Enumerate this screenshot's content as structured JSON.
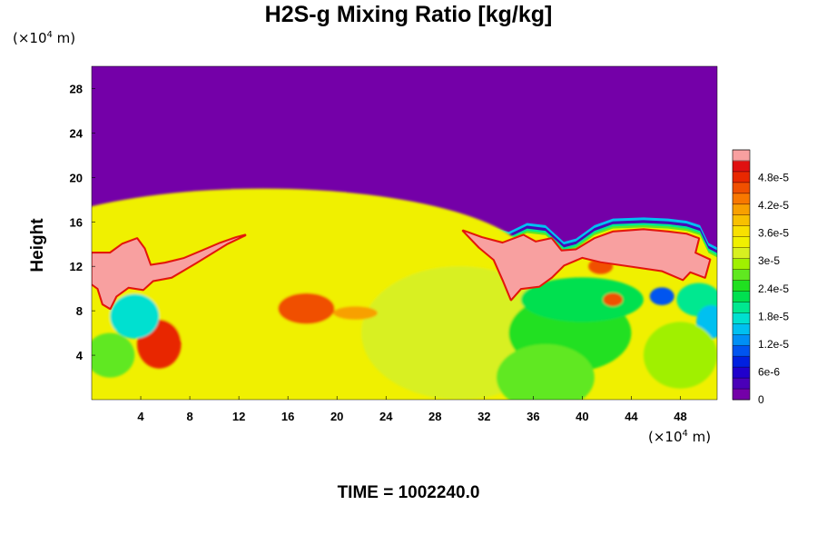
{
  "chart_data": {
    "type": "heatmap",
    "title": "H2S-g Mixing Ratio [kg/kg]",
    "ylabel": "Height",
    "x_unit": {
      "base": "(×10",
      "exp": "4",
      "suffix": " m)"
    },
    "y_unit": {
      "base": "(×10",
      "exp": "4",
      "suffix": " m)"
    },
    "xlim": [
      0,
      51
    ],
    "ylim": [
      0,
      30
    ],
    "x_ticks": [
      4,
      8,
      12,
      16,
      20,
      24,
      28,
      32,
      36,
      40,
      44,
      48
    ],
    "y_ticks": [
      4,
      8,
      12,
      16,
      20,
      24,
      28
    ],
    "colorbar": {
      "range": [
        0,
        5.4e-05
      ],
      "labels": [
        {
          "value": 0,
          "text": "0"
        },
        {
          "value": 6e-06,
          "text": "6e-6"
        },
        {
          "value": 1.2e-05,
          "text": "1.2e-5"
        },
        {
          "value": 1.8e-05,
          "text": "1.8e-5"
        },
        {
          "value": 2.4e-05,
          "text": "2.4e-5"
        },
        {
          "value": 3e-05,
          "text": "3e-5"
        },
        {
          "value": 3.6e-05,
          "text": "3.6e-5"
        },
        {
          "value": 4.2e-05,
          "text": "4.2e-5"
        },
        {
          "value": 4.8e-05,
          "text": "4.8e-5"
        }
      ],
      "colors": [
        "#7400a8",
        "#4a00b8",
        "#2000cc",
        "#0020e0",
        "#0055f0",
        "#0090f5",
        "#00c0f0",
        "#00e0d0",
        "#00e890",
        "#00e050",
        "#20e020",
        "#60e820",
        "#a0f000",
        "#d8f020",
        "#f0f000",
        "#f8e000",
        "#f8c000",
        "#f8a000",
        "#f87800",
        "#f05000",
        "#e82800",
        "#e01010",
        "#f8a0a0"
      ]
    },
    "background_value": 0,
    "fields": [
      {
        "kind": "base",
        "value": 3.3e-05
      },
      {
        "kind": "blob",
        "x": 14,
        "y": 12,
        "rx": 22,
        "ry": 7,
        "value": 3.4e-05
      },
      {
        "kind": "blob",
        "x": 30,
        "y": 6,
        "rx": 8,
        "ry": 6,
        "value": 3.2e-05
      },
      {
        "kind": "blob",
        "x": 17.5,
        "y": 8.2,
        "rx": 2.3,
        "ry": 1.4,
        "value": 4.6e-05
      },
      {
        "kind": "blob",
        "x": 21.5,
        "y": 7.8,
        "rx": 1.8,
        "ry": 0.6,
        "value": 4e-05
      },
      {
        "kind": "blob",
        "x": 5.5,
        "y": 5.0,
        "rx": 1.8,
        "ry": 2.2,
        "value": 4.9e-05
      },
      {
        "kind": "blob",
        "x": 3.5,
        "y": 7.5,
        "rx": 2.0,
        "ry": 2.0,
        "value": 1.8e-05
      },
      {
        "kind": "blob",
        "x": 1.5,
        "y": 4.0,
        "rx": 2.0,
        "ry": 2.0,
        "value": 2.6e-05
      },
      {
        "kind": "blob",
        "x": 39,
        "y": 6,
        "rx": 5,
        "ry": 3.5,
        "value": 2.5e-05
      },
      {
        "kind": "blob",
        "x": 40,
        "y": 9,
        "rx": 5,
        "ry": 2,
        "value": 2.2e-05
      },
      {
        "kind": "blob",
        "x": 46.5,
        "y": 9.3,
        "rx": 1.0,
        "ry": 0.8,
        "value": 1e-05
      },
      {
        "kind": "blob",
        "x": 42.5,
        "y": 9.0,
        "rx": 0.8,
        "ry": 0.6,
        "value": 4.6e-05
      },
      {
        "kind": "blob",
        "x": 41.5,
        "y": 12.0,
        "rx": 1.0,
        "ry": 0.7,
        "value": 4.6e-05
      },
      {
        "kind": "blob",
        "x": 49.5,
        "y": 9.0,
        "rx": 1.8,
        "ry": 1.5,
        "value": 2e-05
      },
      {
        "kind": "blob",
        "x": 50.5,
        "y": 7.0,
        "rx": 1.2,
        "ry": 1.5,
        "value": 1.6e-05
      },
      {
        "kind": "blob",
        "x": 37,
        "y": 2,
        "rx": 4,
        "ry": 3,
        "value": 2.8e-05
      },
      {
        "kind": "blob",
        "x": 48,
        "y": 4,
        "rx": 3,
        "ry": 3,
        "value": 3e-05
      }
    ],
    "plume_top": [
      [
        0,
        13.3
      ],
      [
        1.5,
        13.3
      ],
      [
        2.5,
        14.2
      ],
      [
        3.8,
        14.8
      ],
      [
        4.5,
        13.6
      ],
      [
        5,
        12.3
      ],
      [
        7.2,
        12.8
      ],
      [
        9,
        13.6
      ],
      [
        10.5,
        14.2
      ],
      [
        11.5,
        14.7
      ],
      [
        12.3,
        15.2
      ],
      [
        13.5,
        15.4
      ],
      [
        20,
        15.4
      ],
      [
        26,
        15.4
      ],
      [
        30,
        15.4
      ],
      [
        31,
        15.2
      ],
      [
        32.5,
        14.7
      ],
      [
        34,
        14.2
      ],
      [
        35.5,
        15.0
      ],
      [
        37,
        14.8
      ],
      [
        38.5,
        13.3
      ],
      [
        39.5,
        13.6
      ],
      [
        41,
        14.8
      ],
      [
        42.5,
        15.4
      ],
      [
        45,
        15.5
      ],
      [
        47,
        15.4
      ],
      [
        48.5,
        15.2
      ],
      [
        49.6,
        14.8
      ],
      [
        50.3,
        13.2
      ],
      [
        51,
        12.8
      ]
    ],
    "high_regions": [
      [
        [
          0,
          13.2
        ],
        [
          1.5,
          13.2
        ],
        [
          2.5,
          14.0
        ],
        [
          3.7,
          14.5
        ],
        [
          4.3,
          13.6
        ],
        [
          4.8,
          12.1
        ],
        [
          6,
          12.3
        ],
        [
          7.5,
          12.7
        ],
        [
          9,
          13.4
        ],
        [
          10.5,
          14.1
        ],
        [
          11.8,
          14.6
        ],
        [
          12.5,
          14.8
        ],
        [
          11,
          14.0
        ],
        [
          8.5,
          12.3
        ],
        [
          6.5,
          11.0
        ],
        [
          5,
          10.7
        ],
        [
          4.2,
          9.9
        ],
        [
          3,
          10.1
        ],
        [
          2,
          9.3
        ],
        [
          1.5,
          8.2
        ],
        [
          0.9,
          8.6
        ],
        [
          0.5,
          10.0
        ],
        [
          0,
          10.4
        ]
      ],
      [
        [
          30.3,
          15.2
        ],
        [
          31.8,
          14.6
        ],
        [
          33.5,
          14.1
        ],
        [
          35.2,
          14.8
        ],
        [
          36.2,
          14.2
        ],
        [
          37.5,
          14.5
        ],
        [
          38.3,
          13.4
        ],
        [
          39.5,
          13.5
        ],
        [
          41,
          14.5
        ],
        [
          42.5,
          15.1
        ],
        [
          45,
          15.3
        ],
        [
          47,
          15.1
        ],
        [
          48.5,
          14.9
        ],
        [
          49.5,
          14.5
        ],
        [
          49.2,
          13.2
        ],
        [
          50.4,
          12.6
        ],
        [
          50.0,
          11.0
        ],
        [
          48.8,
          11.5
        ],
        [
          48.2,
          10.8
        ],
        [
          46.5,
          11.6
        ],
        [
          44,
          12.0
        ],
        [
          41.5,
          12.4
        ],
        [
          40,
          12.8
        ],
        [
          38.5,
          12.1
        ],
        [
          37.5,
          11.0
        ],
        [
          36.5,
          10.2
        ],
        [
          35,
          10.0
        ],
        [
          34.2,
          9.0
        ],
        [
          33.6,
          10.6
        ],
        [
          32.8,
          12.6
        ],
        [
          31.6,
          13.7
        ]
      ]
    ],
    "time_label": "TIME = 1002240.0"
  }
}
